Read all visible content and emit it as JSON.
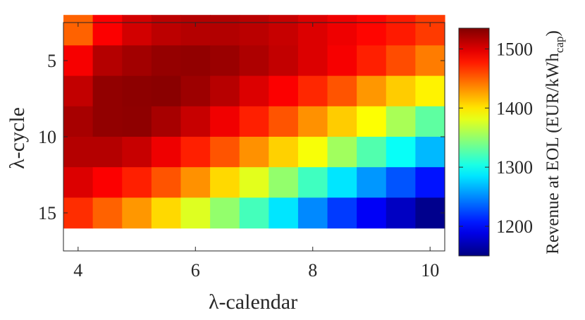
{
  "chart_data": {
    "type": "heatmap",
    "xlabel": "λ-calendar",
    "ylabel": "λ-cycle",
    "x_ticks": [
      4,
      6,
      8,
      10
    ],
    "y_ticks": [
      5,
      10,
      15
    ],
    "x_range": [
      3.75,
      10.25
    ],
    "y_range": [
      2.5,
      17.5
    ],
    "x": [
      4.0,
      4.5,
      5.0,
      5.5,
      6.0,
      6.5,
      7.0,
      7.5,
      8.0,
      8.5,
      9.0,
      9.5,
      10.0
    ],
    "y": [
      3,
      5,
      7,
      9,
      11,
      13,
      15
    ],
    "values": [
      [
        1450,
        1488,
        1504,
        1512,
        1515,
        1516,
        1513,
        1508,
        1500,
        1493,
        1485,
        1477,
        1465
      ],
      [
        1490,
        1515,
        1522,
        1527,
        1528,
        1525,
        1518,
        1510,
        1500,
        1490,
        1475,
        1458,
        1440
      ],
      [
        1510,
        1528,
        1530,
        1531,
        1524,
        1514,
        1500,
        1488,
        1472,
        1455,
        1430,
        1410,
        1395
      ],
      [
        1520,
        1528,
        1529,
        1520,
        1508,
        1492,
        1475,
        1455,
        1432,
        1410,
        1390,
        1358,
        1330
      ],
      [
        1515,
        1515,
        1508,
        1493,
        1475,
        1455,
        1432,
        1408,
        1388,
        1355,
        1325,
        1297,
        1268
      ],
      [
        1500,
        1488,
        1475,
        1455,
        1432,
        1405,
        1380,
        1350,
        1318,
        1285,
        1255,
        1230,
        1205
      ],
      [
        1470,
        1450,
        1430,
        1405,
        1378,
        1350,
        1320,
        1285,
        1250,
        1220,
        1195,
        1175,
        1155
      ]
    ],
    "colorbar": {
      "label": "Revenue at EOL (EUR/kWh",
      "label_subscript": "cap",
      "label_close": ")",
      "range": [
        1150,
        1535
      ],
      "ticks": [
        1200,
        1300,
        1400,
        1500
      ],
      "colormap": "jet"
    }
  }
}
